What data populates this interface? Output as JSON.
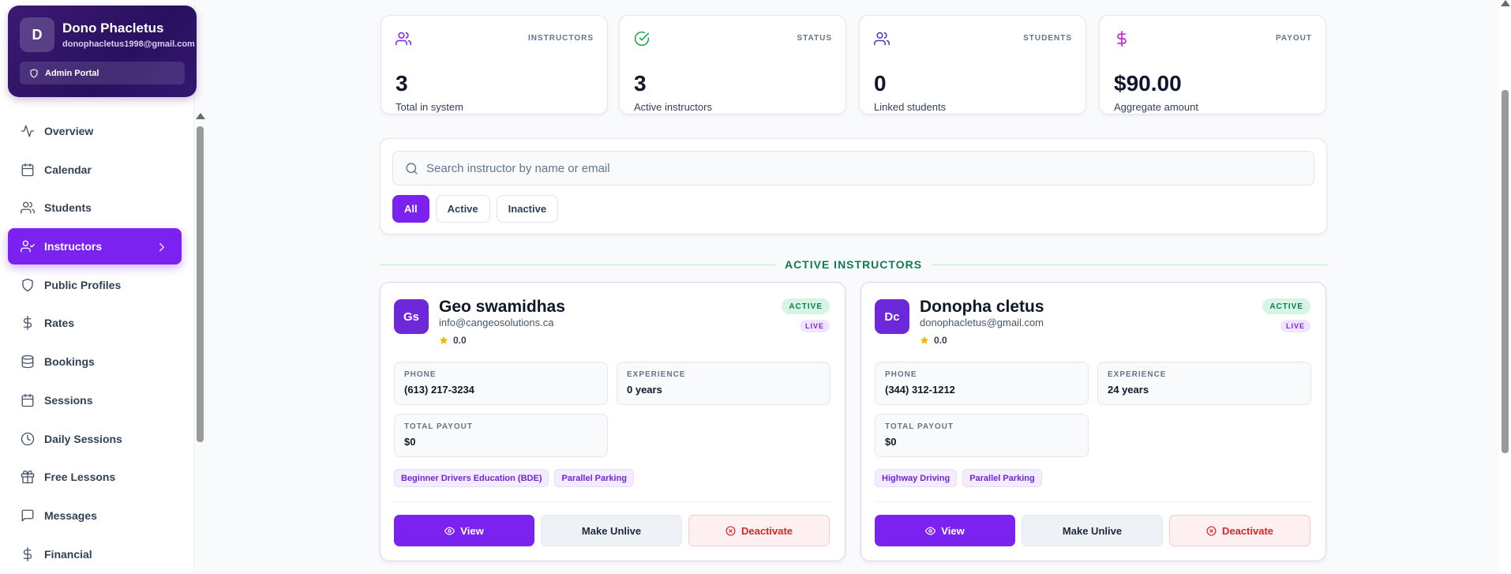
{
  "profile": {
    "initial": "D",
    "name": "Dono Phacletus",
    "email": "donophacletus1998@gmail.com",
    "portal_label": "Admin Portal"
  },
  "nav": [
    {
      "label": "Overview",
      "icon": "activity-icon"
    },
    {
      "label": "Calendar",
      "icon": "calendar-icon"
    },
    {
      "label": "Students",
      "icon": "users-icon"
    },
    {
      "label": "Instructors",
      "icon": "user-check-icon",
      "active": true
    },
    {
      "label": "Public Profiles",
      "icon": "shield-icon"
    },
    {
      "label": "Rates",
      "icon": "dollar-icon"
    },
    {
      "label": "Bookings",
      "icon": "database-icon"
    },
    {
      "label": "Sessions",
      "icon": "calendar-icon"
    },
    {
      "label": "Daily Sessions",
      "icon": "clock-icon"
    },
    {
      "label": "Free Lessons",
      "icon": "gift-icon"
    },
    {
      "label": "Messages",
      "icon": "message-icon"
    },
    {
      "label": "Financial",
      "icon": "dollar-icon"
    }
  ],
  "stats": [
    {
      "tag": "INSTRUCTORS",
      "value": "3",
      "sub": "Total in system",
      "icon": "users-icon",
      "color": "#7c22f0"
    },
    {
      "tag": "STATUS",
      "value": "3",
      "sub": "Active instructors",
      "icon": "check-circle-icon",
      "color": "#16a34a"
    },
    {
      "tag": "STUDENTS",
      "value": "0",
      "sub": "Linked students",
      "icon": "users-icon",
      "color": "#4338ca"
    },
    {
      "tag": "PAYOUT",
      "value": "$90.00",
      "sub": "Aggregate amount",
      "icon": "dollar-icon",
      "color": "#c026d3"
    }
  ],
  "search": {
    "placeholder": "Search instructor by name or email",
    "value": ""
  },
  "filters": [
    "All",
    "Active",
    "Inactive"
  ],
  "section_title": "ACTIVE INSTRUCTORS",
  "instructors": [
    {
      "initials": "Gs",
      "name": "Geo swamidhas",
      "email": "info@cangeosolutions.ca",
      "rating": "0.0",
      "status": "ACTIVE",
      "live": "LIVE",
      "phone_label": "PHONE",
      "phone": "(613) 217-3234",
      "exp_label": "EXPERIENCE",
      "experience": "0 years",
      "payout_label": "TOTAL PAYOUT",
      "payout": "$0",
      "tags": [
        "Beginner Drivers Education (BDE)",
        "Parallel Parking"
      ],
      "view_label": "View",
      "unlive_label": "Make Unlive",
      "deactivate_label": "Deactivate"
    },
    {
      "initials": "Dc",
      "name": "Donopha cletus",
      "email": "donophacletus@gmail.com",
      "rating": "0.0",
      "status": "ACTIVE",
      "live": "LIVE",
      "phone_label": "PHONE",
      "phone": "(344) 312-1212",
      "exp_label": "EXPERIENCE",
      "experience": "24 years",
      "payout_label": "TOTAL PAYOUT",
      "payout": "$0",
      "tags": [
        "Highway Driving",
        "Parallel Parking"
      ],
      "view_label": "View",
      "unlive_label": "Make Unlive",
      "deactivate_label": "Deactivate"
    }
  ],
  "colors": {
    "accent": "#7c22f0",
    "profile_bg": "#2a1160",
    "success": "#0f7b52",
    "danger": "#dc2626"
  }
}
